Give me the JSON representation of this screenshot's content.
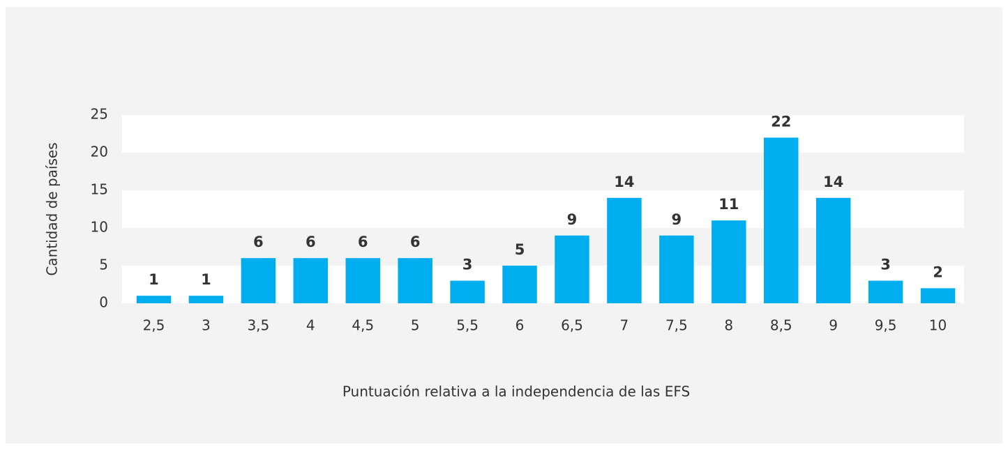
{
  "chart_data": {
    "type": "bar",
    "y_label": "Cantidad de países",
    "x_label": "Puntuación relativa a la independencia de las EFS",
    "categories": [
      "2,5",
      "3",
      "3,5",
      "4",
      "4,5",
      "5",
      "5,5",
      "6",
      "6,5",
      "7",
      "7,5",
      "8",
      "8,5",
      "9",
      "9,5",
      "10"
    ],
    "values": [
      1,
      1,
      6,
      6,
      6,
      6,
      3,
      5,
      9,
      14,
      9,
      11,
      22,
      14,
      3,
      2
    ],
    "color": "#00adef",
    "ylim": [
      0,
      25
    ],
    "yticks": [
      0,
      5,
      10,
      15,
      20,
      25
    ],
    "grid": true
  }
}
